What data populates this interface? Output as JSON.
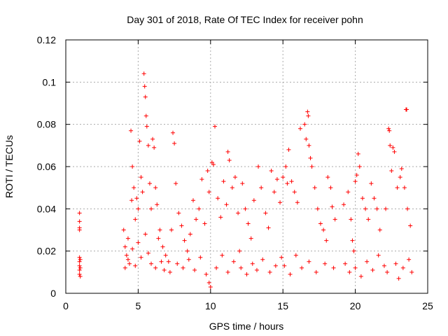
{
  "chart_data": {
    "type": "scatter",
    "title": "Day 301 of 2018, Rate Of TEC Index for receiver pohn",
    "xlabel": "GPS time / hours",
    "ylabel": "ROTI / TECUs",
    "xlim": [
      0,
      25
    ],
    "ylim": [
      0,
      0.12
    ],
    "grid": true,
    "marker": "+",
    "color": "#ff0000",
    "x_ticks": [
      0,
      5,
      10,
      15,
      20,
      25
    ],
    "x_tick_labels": [
      "0",
      "5",
      "10",
      "15",
      "20",
      "25"
    ],
    "y_ticks": [
      0,
      0.02,
      0.04,
      0.06,
      0.08,
      0.1,
      0.12
    ],
    "y_tick_labels": [
      "0",
      "0.02",
      "0.04",
      "0.06",
      "0.08",
      "0.1",
      "0.12"
    ],
    "series": [
      {
        "name": "ROTI",
        "points": [
          [
            0.95,
            0.038
          ],
          [
            0.95,
            0.034
          ],
          [
            0.95,
            0.031
          ],
          [
            0.95,
            0.03
          ],
          [
            0.95,
            0.017
          ],
          [
            0.95,
            0.015
          ],
          [
            0.95,
            0.013
          ],
          [
            0.95,
            0.011
          ],
          [
            0.95,
            0.009
          ],
          [
            1.0,
            0.016
          ],
          [
            1.0,
            0.012
          ],
          [
            1.0,
            0.008
          ],
          [
            4.0,
            0.03
          ],
          [
            4.1,
            0.022
          ],
          [
            4.2,
            0.018
          ],
          [
            4.3,
            0.026
          ],
          [
            4.4,
            0.014
          ],
          [
            4.5,
            0.077
          ],
          [
            4.55,
            0.044
          ],
          [
            4.6,
            0.06
          ],
          [
            4.7,
            0.05
          ],
          [
            4.8,
            0.035
          ],
          [
            4.9,
            0.045
          ],
          [
            5.0,
            0.04
          ],
          [
            5.1,
            0.072
          ],
          [
            5.2,
            0.055
          ],
          [
            5.3,
            0.048
          ],
          [
            5.4,
            0.104
          ],
          [
            5.45,
            0.098
          ],
          [
            5.5,
            0.093
          ],
          [
            5.55,
            0.084
          ],
          [
            5.6,
            0.079
          ],
          [
            5.7,
            0.07
          ],
          [
            5.8,
            0.052
          ],
          [
            5.9,
            0.04
          ],
          [
            4.1,
            0.012
          ],
          [
            4.3,
            0.016
          ],
          [
            4.6,
            0.021
          ],
          [
            4.8,
            0.013
          ],
          [
            5.0,
            0.024
          ],
          [
            5.2,
            0.017
          ],
          [
            5.5,
            0.028
          ],
          [
            5.7,
            0.019
          ],
          [
            5.9,
            0.014
          ],
          [
            6.1,
            0.069
          ],
          [
            6.0,
            0.073
          ],
          [
            6.2,
            0.05
          ],
          [
            6.3,
            0.042
          ],
          [
            6.5,
            0.03
          ],
          [
            6.7,
            0.022
          ],
          [
            6.9,
            0.018
          ],
          [
            6.2,
            0.012
          ],
          [
            6.4,
            0.026
          ],
          [
            6.6,
            0.015
          ],
          [
            6.8,
            0.011
          ],
          [
            7.1,
            0.015
          ],
          [
            7.3,
            0.03
          ],
          [
            7.4,
            0.076
          ],
          [
            7.5,
            0.071
          ],
          [
            7.6,
            0.052
          ],
          [
            7.8,
            0.038
          ],
          [
            8.0,
            0.032
          ],
          [
            8.2,
            0.025
          ],
          [
            8.4,
            0.02
          ],
          [
            8.6,
            0.028
          ],
          [
            8.8,
            0.044
          ],
          [
            9.0,
            0.035
          ],
          [
            9.2,
            0.04
          ],
          [
            9.4,
            0.054
          ],
          [
            9.6,
            0.033
          ],
          [
            9.8,
            0.058
          ],
          [
            9.9,
            0.048
          ],
          [
            7.2,
            0.01
          ],
          [
            7.7,
            0.014
          ],
          [
            8.1,
            0.012
          ],
          [
            8.5,
            0.016
          ],
          [
            8.9,
            0.011
          ],
          [
            9.3,
            0.017
          ],
          [
            9.7,
            0.009
          ],
          [
            9.9,
            0.005
          ],
          [
            10.0,
            0.003
          ],
          [
            10.1,
            0.062
          ],
          [
            10.2,
            0.061
          ],
          [
            10.3,
            0.079
          ],
          [
            10.5,
            0.045
          ],
          [
            10.7,
            0.036
          ],
          [
            10.9,
            0.053
          ],
          [
            11.1,
            0.042
          ],
          [
            11.2,
            0.067
          ],
          [
            11.3,
            0.063
          ],
          [
            11.5,
            0.05
          ],
          [
            11.7,
            0.055
          ],
          [
            11.9,
            0.038
          ],
          [
            10.4,
            0.012
          ],
          [
            10.8,
            0.018
          ],
          [
            11.2,
            0.01
          ],
          [
            11.6,
            0.015
          ],
          [
            12.0,
            0.02
          ],
          [
            12.2,
            0.052
          ],
          [
            12.4,
            0.04
          ],
          [
            12.6,
            0.033
          ],
          [
            12.8,
            0.026
          ],
          [
            13.0,
            0.044
          ],
          [
            13.3,
            0.06
          ],
          [
            13.5,
            0.05
          ],
          [
            13.8,
            0.038
          ],
          [
            14.0,
            0.031
          ],
          [
            14.2,
            0.058
          ],
          [
            14.4,
            0.048
          ],
          [
            14.6,
            0.054
          ],
          [
            14.8,
            0.043
          ],
          [
            12.1,
            0.012
          ],
          [
            12.5,
            0.009
          ],
          [
            12.9,
            0.014
          ],
          [
            13.2,
            0.011
          ],
          [
            13.6,
            0.016
          ],
          [
            14.1,
            0.01
          ],
          [
            14.5,
            0.013
          ],
          [
            14.9,
            0.017
          ],
          [
            15.0,
            0.055
          ],
          [
            15.2,
            0.06
          ],
          [
            15.3,
            0.052
          ],
          [
            15.4,
            0.068
          ],
          [
            15.6,
            0.053
          ],
          [
            15.8,
            0.048
          ],
          [
            16.0,
            0.043
          ],
          [
            16.2,
            0.078
          ],
          [
            16.5,
            0.08
          ],
          [
            16.6,
            0.073
          ],
          [
            16.7,
            0.086
          ],
          [
            16.75,
            0.084
          ],
          [
            16.8,
            0.07
          ],
          [
            16.9,
            0.064
          ],
          [
            17.0,
            0.06
          ],
          [
            15.1,
            0.013
          ],
          [
            15.5,
            0.009
          ],
          [
            15.9,
            0.018
          ],
          [
            16.3,
            0.012
          ],
          [
            16.8,
            0.015
          ],
          [
            17.2,
            0.05
          ],
          [
            17.4,
            0.04
          ],
          [
            17.6,
            0.033
          ],
          [
            17.8,
            0.03
          ],
          [
            18.0,
            0.025
          ],
          [
            18.1,
            0.055
          ],
          [
            18.3,
            0.05
          ],
          [
            18.4,
            0.041
          ],
          [
            18.6,
            0.035
          ],
          [
            17.3,
            0.01
          ],
          [
            17.9,
            0.014
          ],
          [
            18.5,
            0.012
          ],
          [
            19.2,
            0.042
          ],
          [
            19.5,
            0.048
          ],
          [
            19.7,
            0.035
          ],
          [
            19.8,
            0.025
          ],
          [
            19.9,
            0.02
          ],
          [
            20.0,
            0.053
          ],
          [
            20.1,
            0.056
          ],
          [
            20.2,
            0.066
          ],
          [
            20.3,
            0.06
          ],
          [
            20.5,
            0.045
          ],
          [
            20.7,
            0.04
          ],
          [
            20.9,
            0.035
          ],
          [
            21.1,
            0.052
          ],
          [
            21.3,
            0.045
          ],
          [
            21.5,
            0.04
          ],
          [
            21.7,
            0.03
          ],
          [
            19.3,
            0.014
          ],
          [
            19.6,
            0.01
          ],
          [
            20.0,
            0.012
          ],
          [
            20.4,
            0.008
          ],
          [
            20.8,
            0.015
          ],
          [
            21.2,
            0.011
          ],
          [
            21.6,
            0.018
          ],
          [
            22.0,
            0.013
          ],
          [
            22.1,
            0.04
          ],
          [
            22.3,
            0.078
          ],
          [
            22.35,
            0.077
          ],
          [
            22.4,
            0.07
          ],
          [
            22.5,
            0.058
          ],
          [
            22.6,
            0.069
          ],
          [
            22.7,
            0.067
          ],
          [
            22.9,
            0.05
          ],
          [
            23.1,
            0.055
          ],
          [
            23.2,
            0.059
          ],
          [
            23.4,
            0.05
          ],
          [
            23.5,
            0.087
          ],
          [
            23.55,
            0.087
          ],
          [
            23.6,
            0.04
          ],
          [
            23.8,
            0.032
          ],
          [
            22.2,
            0.01
          ],
          [
            22.8,
            0.014
          ],
          [
            23.0,
            0.007
          ],
          [
            23.3,
            0.012
          ],
          [
            23.7,
            0.016
          ],
          [
            23.9,
            0.01
          ]
        ]
      }
    ]
  }
}
